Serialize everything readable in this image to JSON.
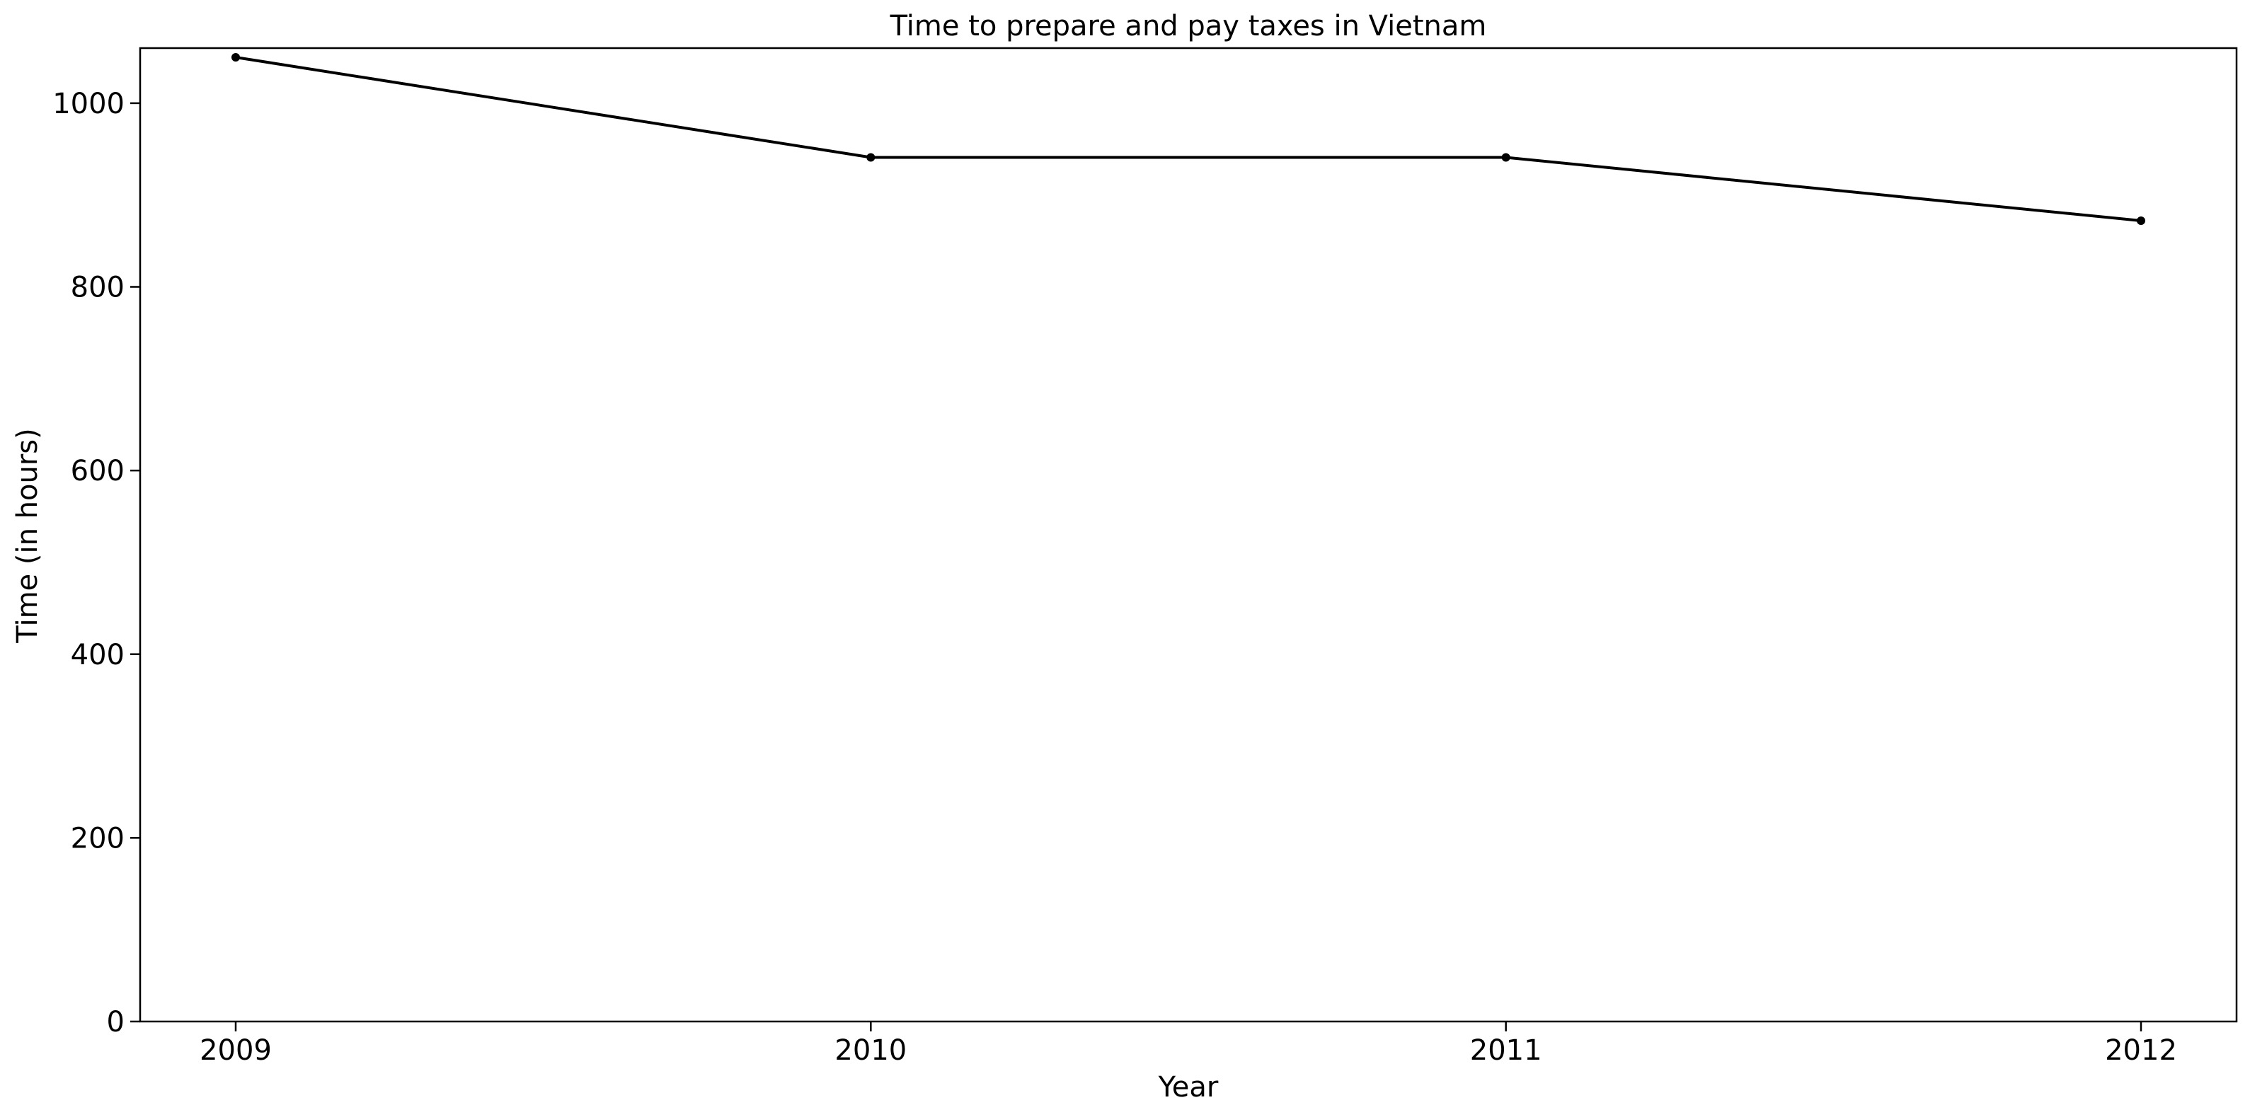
{
  "chart_data": {
    "type": "line",
    "title": "Time to prepare and pay taxes in Vietnam",
    "xlabel": "Year",
    "ylabel": "Time (in hours)",
    "categories": [
      "2009",
      "2010",
      "2011",
      "2012"
    ],
    "series": [
      {
        "values": [
          1050,
          941,
          941,
          872
        ]
      }
    ],
    "ylim": [
      0,
      1060
    ],
    "yticks": [
      0,
      200,
      400,
      600,
      800,
      1000
    ],
    "grid": false,
    "legend": "none",
    "line_color": "#000000"
  }
}
